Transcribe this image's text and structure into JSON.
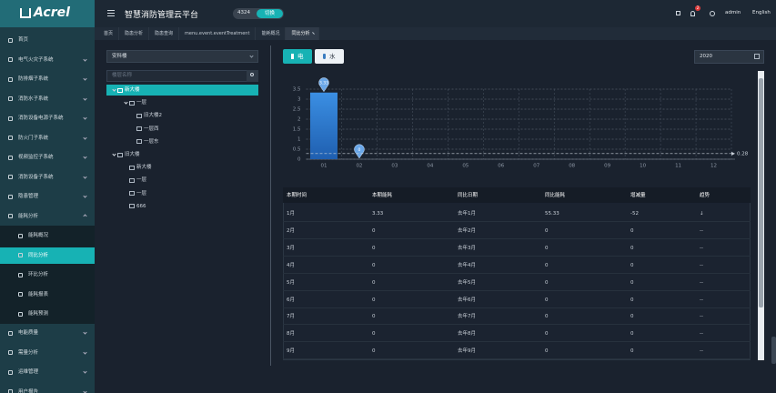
{
  "sidebar": {
    "logo": "Acrel",
    "menu_top": [
      "首页",
      "电气火灾子系统",
      "防排烟子系统",
      "消防水子系统",
      "消防设备电源子系统",
      "防火门子系统",
      "视频监控子系统",
      "消防设备子系统",
      "隐患管理",
      "能耗分析"
    ],
    "submenu": [
      "能耗概况",
      "同比分析",
      "环比分析",
      "能耗报表",
      "能耗预测"
    ],
    "menu_bottom": [
      "电能质量",
      "需量分析",
      "运维管理",
      "用户报告"
    ]
  },
  "topbar": {
    "title": "智慧消防管理云平台",
    "project_id": "4324",
    "switch": "切换",
    "badge": "2",
    "user": "admin",
    "language": "English"
  },
  "tabs": [
    "首页",
    "隐患分析",
    "隐患查询",
    "menu.event.eventTreatment",
    "能耗概况",
    "同比分析"
  ],
  "building_select": "安科楼",
  "search_placeholder": "楼层名称",
  "tree": [
    {
      "label": "新大楼",
      "children": [
        {
          "label": "一层",
          "children": [
            {
              "label": "旧大楼2"
            },
            {
              "label": "一层西"
            },
            {
              "label": "一层东"
            }
          ]
        }
      ]
    },
    {
      "label": "旧大楼",
      "children": [
        {
          "label": "新大楼"
        },
        {
          "label": "一层"
        },
        {
          "label": "一层"
        },
        {
          "label": "666"
        }
      ]
    }
  ],
  "energy_types": [
    "电",
    "水"
  ],
  "year": "2020",
  "chart_data": {
    "type": "bar",
    "categories": [
      "01",
      "02",
      "03",
      "04",
      "05",
      "06",
      "07",
      "08",
      "09",
      "10",
      "11",
      "12"
    ],
    "values": [
      3.33,
      0,
      null,
      null,
      null,
      null,
      null,
      null,
      null,
      null,
      null,
      null
    ],
    "color": "#3b8fe3",
    "ylim": [
      0,
      3.5
    ],
    "yticks": [
      0,
      0.5,
      1,
      1.5,
      2,
      2.5,
      3,
      3.5
    ],
    "grid": true,
    "average": 0.28
  },
  "table": {
    "columns": [
      "本期时间",
      "本期能耗",
      "同比日期",
      "同比能耗",
      "增减量",
      "趋势"
    ],
    "rows": [
      [
        "1月",
        3.33,
        "去年1月",
        55.33,
        -52,
        "↓"
      ],
      [
        "2月",
        0,
        "去年2月",
        0,
        0,
        "--"
      ],
      [
        "3月",
        0,
        "去年3月",
        0,
        0,
        "--"
      ],
      [
        "4月",
        0,
        "去年4月",
        0,
        0,
        "--"
      ],
      [
        "5月",
        0,
        "去年5月",
        0,
        0,
        "--"
      ],
      [
        "6月",
        0,
        "去年6月",
        0,
        0,
        "--"
      ],
      [
        "7月",
        0,
        "去年7月",
        0,
        0,
        "--"
      ],
      [
        "8月",
        0,
        "去年8月",
        0,
        0,
        "--"
      ],
      [
        "9月",
        0,
        "去年9月",
        0,
        0,
        "--"
      ]
    ]
  }
}
